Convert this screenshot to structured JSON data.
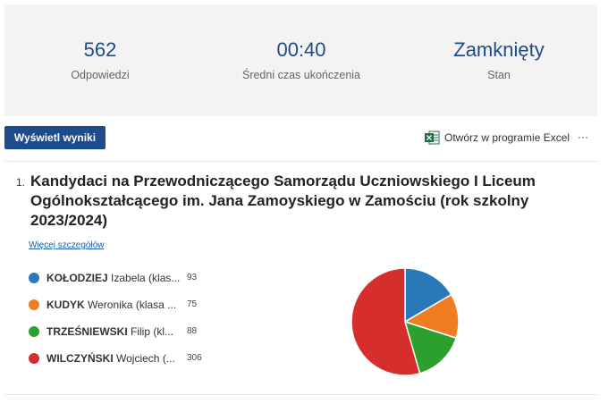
{
  "summary": [
    {
      "value": "562",
      "label": "Odpowiedzi"
    },
    {
      "value": "00:40",
      "label": "Średni czas ukończenia"
    },
    {
      "value": "Zamknięty",
      "label": "Stan"
    }
  ],
  "toolbar": {
    "button": "Wyświetl wyniki",
    "excel": "Otwórz w programie Excel",
    "more": "···"
  },
  "question": {
    "number": "1.",
    "title": "Kandydaci na Przewodniczącego Samorządu Uczniowskiego I Liceum Ogólnokształcącego im. Jana Zamoyskiego w Zamościu (rok szkolny 2023/2024)",
    "details_link": "Więcej szczegółów"
  },
  "chart_data": {
    "type": "pie",
    "categories": [
      "KOŁODZIEJ",
      "KUDYK",
      "TRZEŚNIEWSKI",
      "WILCZYŃSKI"
    ],
    "category_details": [
      "Izabela (klas...",
      "Weronika (klasa ...",
      "Filip (kl...",
      "Wojciech (..."
    ],
    "values": [
      93,
      75,
      88,
      306
    ],
    "colors": [
      "#2a78ba",
      "#ee7d23",
      "#2ca02c",
      "#d62d2d"
    ]
  }
}
